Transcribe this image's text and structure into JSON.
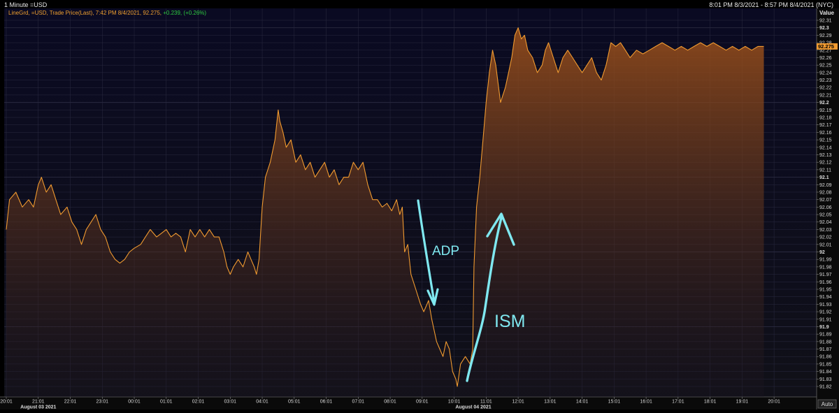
{
  "header": {
    "title": "1 Minute =USD",
    "range": "8:01 PM 8/3/2021 - 8:57 PM 8/4/2021 (NYC)"
  },
  "legend": {
    "text": "LineGrd, =USD, Trade Price(Last), 7:42 PM 8/4/2021, 92.275, ",
    "change": "+0.239, (+0.26%)"
  },
  "y_axis": {
    "title": "Value",
    "ticks": [
      "92.31",
      "92.3",
      "92.29",
      "92.28",
      "92.27",
      "92.26",
      "92.25",
      "92.24",
      "92.23",
      "92.22",
      "92.21",
      "92.2",
      "92.19",
      "92.18",
      "92.17",
      "92.16",
      "92.15",
      "92.14",
      "92.13",
      "92.12",
      "92.11",
      "92.1",
      "92.09",
      "92.08",
      "92.07",
      "92.06",
      "92.05",
      "92.04",
      "92.03",
      "92.02",
      "92.01",
      "92",
      "91.99",
      "91.98",
      "91.97",
      "91.96",
      "91.95",
      "91.94",
      "91.93",
      "91.92",
      "91.91",
      "91.9",
      "91.89",
      "91.88",
      "91.87",
      "91.86",
      "91.85",
      "91.84",
      "91.83",
      "91.82"
    ],
    "bold_ticks": [
      "92.3",
      "92.2",
      "92.1",
      "92",
      "91.9"
    ],
    "last_value": "92.275",
    "auto_label": "Auto"
  },
  "x_axis": {
    "ticks": [
      "20:01",
      "21:01",
      "22:01",
      "23:01",
      "00:01",
      "01:01",
      "02:01",
      "03:01",
      "04:01",
      "05:01",
      "06:01",
      "07:01",
      "08:01",
      "09:01",
      "10:01",
      "11:01",
      "12:01",
      "13:01",
      "14:01",
      "15:01",
      "16:01",
      "17:01",
      "18:01",
      "19:01",
      "20:01"
    ],
    "dates": [
      {
        "label": "August 03 2021",
        "hour": 1.0
      },
      {
        "label": "August 04 2021",
        "hour": 14.6
      }
    ]
  },
  "annotations": {
    "adp": "ADP",
    "ism": "ISM",
    "arrow_color": "#7fe8f0"
  },
  "colors": {
    "line": "#f09a30",
    "fill_top": "#a0521a",
    "background": "#0b0b1a",
    "grid": "#2a2a40",
    "last_value_bg": "#f09a30"
  },
  "chart_data": {
    "type": "area",
    "title": "1 Minute =USD",
    "xlabel": "",
    "ylabel": "Value",
    "x_unit": "hours since 20:01 Aug 03 2021",
    "ylim": [
      91.82,
      92.31
    ],
    "xlim": [
      0,
      24.5
    ],
    "grid": true,
    "series": [
      {
        "name": "=USD Trade Price(Last)",
        "points": [
          [
            0.0,
            92.03
          ],
          [
            0.1,
            92.07
          ],
          [
            0.3,
            92.08
          ],
          [
            0.5,
            92.06
          ],
          [
            0.7,
            92.07
          ],
          [
            0.85,
            92.06
          ],
          [
            1.0,
            92.09
          ],
          [
            1.1,
            92.1
          ],
          [
            1.25,
            92.08
          ],
          [
            1.4,
            92.09
          ],
          [
            1.55,
            92.07
          ],
          [
            1.7,
            92.05
          ],
          [
            1.9,
            92.06
          ],
          [
            2.05,
            92.04
          ],
          [
            2.2,
            92.03
          ],
          [
            2.35,
            92.01
          ],
          [
            2.5,
            92.03
          ],
          [
            2.65,
            92.04
          ],
          [
            2.8,
            92.05
          ],
          [
            2.95,
            92.03
          ],
          [
            3.1,
            92.02
          ],
          [
            3.25,
            92.0
          ],
          [
            3.4,
            91.99
          ],
          [
            3.55,
            91.985
          ],
          [
            3.7,
            91.99
          ],
          [
            3.85,
            92.0
          ],
          [
            4.0,
            92.005
          ],
          [
            4.2,
            92.01
          ],
          [
            4.35,
            92.02
          ],
          [
            4.5,
            92.03
          ],
          [
            4.7,
            92.02
          ],
          [
            4.85,
            92.025
          ],
          [
            5.0,
            92.03
          ],
          [
            5.15,
            92.02
          ],
          [
            5.3,
            92.025
          ],
          [
            5.45,
            92.02
          ],
          [
            5.6,
            92.0
          ],
          [
            5.75,
            92.03
          ],
          [
            5.9,
            92.02
          ],
          [
            6.05,
            92.03
          ],
          [
            6.2,
            92.02
          ],
          [
            6.35,
            92.03
          ],
          [
            6.5,
            92.02
          ],
          [
            6.65,
            92.02
          ],
          [
            6.8,
            92.0
          ],
          [
            6.9,
            91.98
          ],
          [
            7.0,
            91.97
          ],
          [
            7.1,
            91.98
          ],
          [
            7.25,
            91.99
          ],
          [
            7.4,
            91.98
          ],
          [
            7.55,
            92.0
          ],
          [
            7.65,
            91.99
          ],
          [
            7.75,
            91.98
          ],
          [
            7.82,
            91.97
          ],
          [
            7.9,
            91.99
          ],
          [
            8.0,
            92.06
          ],
          [
            8.1,
            92.1
          ],
          [
            8.25,
            92.12
          ],
          [
            8.4,
            92.15
          ],
          [
            8.5,
            92.19
          ],
          [
            8.55,
            92.175
          ],
          [
            8.65,
            92.16
          ],
          [
            8.75,
            92.14
          ],
          [
            8.9,
            92.15
          ],
          [
            9.05,
            92.12
          ],
          [
            9.2,
            92.13
          ],
          [
            9.35,
            92.11
          ],
          [
            9.5,
            92.12
          ],
          [
            9.65,
            92.1
          ],
          [
            9.8,
            92.11
          ],
          [
            9.95,
            92.12
          ],
          [
            10.1,
            92.1
          ],
          [
            10.25,
            92.11
          ],
          [
            10.4,
            92.09
          ],
          [
            10.55,
            92.1
          ],
          [
            10.7,
            92.1
          ],
          [
            10.85,
            92.12
          ],
          [
            11.0,
            92.11
          ],
          [
            11.15,
            92.12
          ],
          [
            11.3,
            92.09
          ],
          [
            11.45,
            92.07
          ],
          [
            11.6,
            92.07
          ],
          [
            11.75,
            92.06
          ],
          [
            11.9,
            92.065
          ],
          [
            12.05,
            92.055
          ],
          [
            12.2,
            92.07
          ],
          [
            12.3,
            92.05
          ],
          [
            12.38,
            92.06
          ],
          [
            12.45,
            92.0
          ],
          [
            12.55,
            92.01
          ],
          [
            12.65,
            91.97
          ],
          [
            12.8,
            91.95
          ],
          [
            12.95,
            91.93
          ],
          [
            13.05,
            91.92
          ],
          [
            13.2,
            91.935
          ],
          [
            13.3,
            91.91
          ],
          [
            13.45,
            91.88
          ],
          [
            13.55,
            91.87
          ],
          [
            13.65,
            91.86
          ],
          [
            13.75,
            91.88
          ],
          [
            13.85,
            91.87
          ],
          [
            13.95,
            91.84
          ],
          [
            14.05,
            91.83
          ],
          [
            14.1,
            91.82
          ],
          [
            14.2,
            91.85
          ],
          [
            14.35,
            91.86
          ],
          [
            14.5,
            91.85
          ],
          [
            14.58,
            91.87
          ],
          [
            14.62,
            91.98
          ],
          [
            14.7,
            92.06
          ],
          [
            14.8,
            92.1
          ],
          [
            14.9,
            92.15
          ],
          [
            15.0,
            92.2
          ],
          [
            15.1,
            92.24
          ],
          [
            15.2,
            92.27
          ],
          [
            15.3,
            92.25
          ],
          [
            15.45,
            92.2
          ],
          [
            15.6,
            92.22
          ],
          [
            15.7,
            92.24
          ],
          [
            15.8,
            92.26
          ],
          [
            15.9,
            92.29
          ],
          [
            16.0,
            92.3
          ],
          [
            16.1,
            92.285
          ],
          [
            16.2,
            92.29
          ],
          [
            16.3,
            92.27
          ],
          [
            16.45,
            92.26
          ],
          [
            16.6,
            92.24
          ],
          [
            16.75,
            92.25
          ],
          [
            16.85,
            92.27
          ],
          [
            16.95,
            92.28
          ],
          [
            17.1,
            92.26
          ],
          [
            17.25,
            92.24
          ],
          [
            17.4,
            92.26
          ],
          [
            17.55,
            92.27
          ],
          [
            17.7,
            92.26
          ],
          [
            17.85,
            92.25
          ],
          [
            18.0,
            92.24
          ],
          [
            18.15,
            92.25
          ],
          [
            18.3,
            92.26
          ],
          [
            18.45,
            92.24
          ],
          [
            18.6,
            92.23
          ],
          [
            18.75,
            92.25
          ],
          [
            18.9,
            92.28
          ],
          [
            19.05,
            92.275
          ],
          [
            19.2,
            92.28
          ],
          [
            19.35,
            92.27
          ],
          [
            19.5,
            92.26
          ],
          [
            19.7,
            92.27
          ],
          [
            19.9,
            92.265
          ],
          [
            20.1,
            92.27
          ],
          [
            20.3,
            92.275
          ],
          [
            20.5,
            92.28
          ],
          [
            20.7,
            92.275
          ],
          [
            20.9,
            92.27
          ],
          [
            21.1,
            92.275
          ],
          [
            21.3,
            92.27
          ],
          [
            21.5,
            92.275
          ],
          [
            21.7,
            92.28
          ],
          [
            21.9,
            92.275
          ],
          [
            22.1,
            92.28
          ],
          [
            22.3,
            92.275
          ],
          [
            22.5,
            92.27
          ],
          [
            22.7,
            92.275
          ],
          [
            22.9,
            92.27
          ],
          [
            23.1,
            92.275
          ],
          [
            23.3,
            92.27
          ],
          [
            23.5,
            92.275
          ],
          [
            23.68,
            92.275
          ]
        ]
      }
    ]
  }
}
